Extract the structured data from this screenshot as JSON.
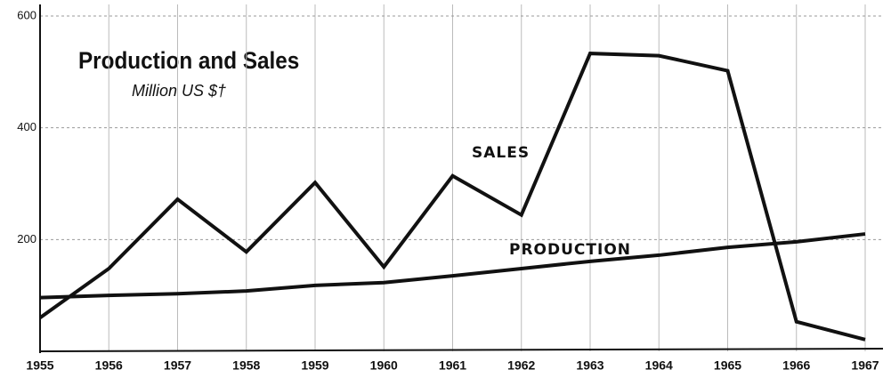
{
  "chart_data": {
    "type": "line",
    "title": "Production and Sales",
    "subtitle": "Million US $†",
    "x": [
      1955,
      1956,
      1957,
      1958,
      1959,
      1960,
      1961,
      1962,
      1963,
      1964,
      1965,
      1966,
      1967
    ],
    "series": [
      {
        "name": "SALES",
        "color": "#111111",
        "values": [
          60,
          148,
          272,
          178,
          302,
          151,
          314,
          244,
          533,
          529,
          502,
          53,
          21
        ]
      },
      {
        "name": "PRODUCTION",
        "color": "#111111",
        "values": [
          96,
          100,
          103,
          108,
          118,
          123,
          135,
          148,
          161,
          172,
          186,
          196,
          210
        ]
      }
    ],
    "xlim": [
      1955,
      1967
    ],
    "xticks": [
      1955,
      1956,
      1957,
      1958,
      1959,
      1960,
      1961,
      1962,
      1963,
      1964,
      1965,
      1966,
      1967
    ],
    "ylim": [
      0,
      600
    ],
    "yticks": [
      200,
      400,
      600
    ],
    "grid": true
  }
}
